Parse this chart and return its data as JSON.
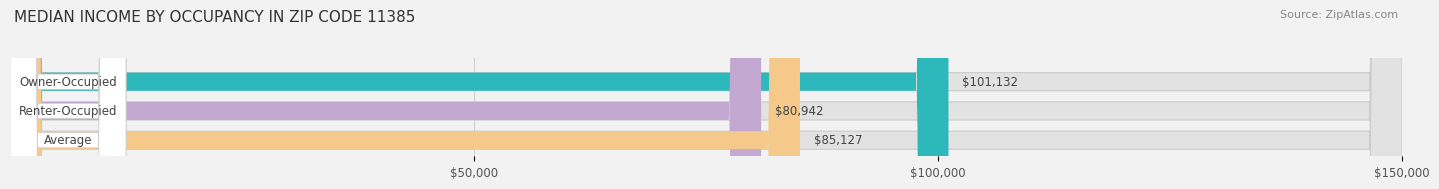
{
  "title": "MEDIAN INCOME BY OCCUPANCY IN ZIP CODE 11385",
  "source_text": "Source: ZipAtlas.com",
  "categories": [
    "Owner-Occupied",
    "Renter-Occupied",
    "Average"
  ],
  "values": [
    101132,
    80942,
    85127
  ],
  "bar_colors": [
    "#2db8bc",
    "#c3a8d1",
    "#f5c98a"
  ],
  "value_labels": [
    "$101,132",
    "$80,942",
    "$85,127"
  ],
  "xlim": [
    0,
    150000
  ],
  "xticks": [
    50000,
    100000,
    150000
  ],
  "xtick_labels": [
    "$50,000",
    "$100,000",
    "$150,000"
  ],
  "background_color": "#f2f2f2",
  "bar_background_color": "#e2e2e2",
  "title_fontsize": 11,
  "source_fontsize": 8,
  "bar_label_fontsize": 8.5,
  "value_fontsize": 8.5,
  "tick_fontsize": 8.5
}
